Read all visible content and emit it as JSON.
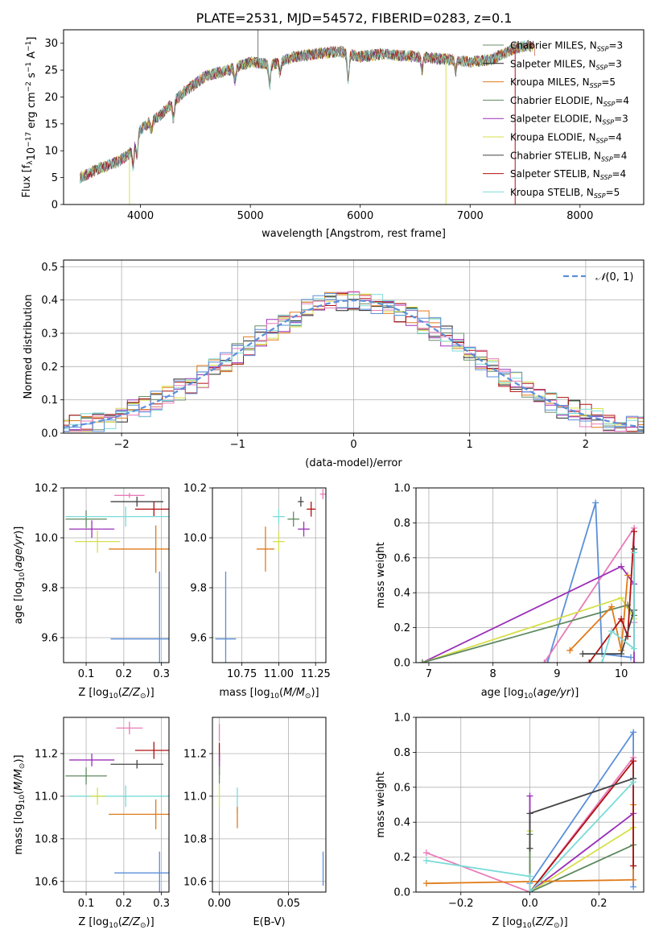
{
  "chart_data": [
    {
      "id": "spectrum",
      "type": "line",
      "title": "PLATE=2531, MJD=54572, FIBERID=0283, z=0.1",
      "xlabel": "wavelength [Angstrom, rest frame]",
      "ylabel": "Flux [f_λ 10^-17 erg cm^-2 s^-1 A^-1]",
      "xlim": [
        3300,
        8580
      ],
      "ylim": [
        0,
        32.5
      ],
      "xticks": [
        4000,
        5000,
        6000,
        7000,
        8000
      ],
      "yticks": [
        0,
        5,
        10,
        15,
        20,
        25,
        30
      ],
      "legend_position": "upper-right",
      "continuum": {
        "x": [
          3450,
          3600,
          3800,
          3900,
          4000,
          4200,
          4400,
          4600,
          4800,
          5000,
          5200,
          5400,
          5600,
          5800,
          6000,
          6200,
          6500,
          6800,
          7000,
          7200,
          7400,
          7500
        ],
        "y": [
          5,
          6.5,
          8,
          9.5,
          14,
          17,
          21,
          24,
          25,
          26.5,
          26,
          27.5,
          28,
          28.5,
          27.5,
          28,
          27.5,
          27,
          26.5,
          27,
          29,
          29.5
        ]
      },
      "series": [
        {
          "name": "Chabrier MILES, N_SSP=3",
          "color": "#6a8f6a"
        },
        {
          "name": "Salpeter MILES, N_SSP=3",
          "color": "#222222"
        },
        {
          "name": "Kroupa MILES, N_SSP=5",
          "color": "#e07b1a"
        },
        {
          "name": "Chabrier ELODIE, N_SSP=4",
          "color": "#5f8a5f"
        },
        {
          "name": "Salpeter ELODIE, N_SSP=3",
          "color": "#9b30b8"
        },
        {
          "name": "Kroupa ELODIE, N_SSP=4",
          "color": "#d6e04a"
        },
        {
          "name": "Chabrier STELIB, N_SSP=4",
          "color": "#444444"
        },
        {
          "name": "Salpeter STELIB, N_SSP=4",
          "color": "#b01010"
        },
        {
          "name": "Kroupa STELIB, N_SSP=5",
          "color": "#7adbd8"
        }
      ]
    },
    {
      "id": "residuals",
      "type": "bar",
      "xlabel": "(data-model)/error",
      "ylabel": "Normed distribution",
      "xlim": [
        -2.5,
        2.5
      ],
      "ylim": [
        0,
        0.52
      ],
      "xticks": [
        -2,
        -1,
        0,
        1,
        2
      ],
      "yticks": [
        0.0,
        0.1,
        0.2,
        0.3,
        0.4,
        0.5
      ],
      "reference_curve": {
        "name": "N(0, 1)",
        "color": "#5b8fd9",
        "style": "dashed"
      },
      "legend_position": "upper-right",
      "histogram_colors": [
        "#6a8f6a",
        "#222222",
        "#e07b1a",
        "#9b30b8",
        "#d6e04a",
        "#b01010",
        "#7adbd8",
        "#e87bb8",
        "#5b8fd9"
      ],
      "bin_width": 0.1
    },
    {
      "id": "age-vs-Z",
      "type": "scatter",
      "xlabel": "Z [log10(Z/Z_sun)]",
      "ylabel": "age [log10(age/yr)]",
      "xlim": [
        0.04,
        0.32
      ],
      "ylim": [
        9.5,
        10.2
      ],
      "xticks": [
        0.1,
        0.2,
        0.3
      ],
      "yticks": [
        9.6,
        9.8,
        10.0,
        10.2
      ],
      "points": [
        {
          "x": 0.215,
          "y": 10.17,
          "xerr": 0.04,
          "yerr": 0.01,
          "color": "#e87bb8"
        },
        {
          "x": 0.235,
          "y": 10.145,
          "xerr": 0.07,
          "yerr": 0.02,
          "color": "#444444"
        },
        {
          "x": 0.28,
          "y": 10.115,
          "xerr": 0.05,
          "yerr": 0.03,
          "color": "#b01010"
        },
        {
          "x": 0.1,
          "y": 10.075,
          "xerr": 0.055,
          "yerr": 0.035,
          "color": "#5f8a5f"
        },
        {
          "x": 0.205,
          "y": 10.085,
          "xerr": 0.16,
          "yerr": 0.04,
          "color": "#7adbd8"
        },
        {
          "x": 0.115,
          "y": 10.035,
          "xerr": 0.06,
          "yerr": 0.035,
          "color": "#9b30b8"
        },
        {
          "x": 0.13,
          "y": 9.985,
          "xerr": 0.06,
          "yerr": 0.045,
          "color": "#d6e04a"
        },
        {
          "x": 0.285,
          "y": 9.955,
          "xerr": 0.125,
          "yerr": 0.095,
          "color": "#e07b1a"
        },
        {
          "x": 0.295,
          "y": 9.595,
          "xerr": 0.13,
          "yerr": 0.27,
          "color": "#5b8fd9"
        }
      ]
    },
    {
      "id": "age-vs-mass",
      "type": "scatter",
      "xlabel": "mass [log10(M/M_sun)]",
      "ylabel": "",
      "xlim": [
        10.55,
        11.32
      ],
      "ylim": [
        9.5,
        10.2
      ],
      "xticks": [
        10.75,
        11.0,
        11.25
      ],
      "xtick_labels": [
        "10.75",
        "11.00",
        "11.25"
      ],
      "yticks": [
        9.6,
        9.8,
        10.0,
        10.2
      ],
      "points": [
        {
          "x": 11.3,
          "y": 10.175,
          "xerr": 0.02,
          "yerr": 0.02,
          "color": "#e87bb8"
        },
        {
          "x": 11.15,
          "y": 10.145,
          "xerr": 0.02,
          "yerr": 0.02,
          "color": "#444444"
        },
        {
          "x": 11.22,
          "y": 10.115,
          "xerr": 0.03,
          "yerr": 0.03,
          "color": "#b01010"
        },
        {
          "x": 11.1,
          "y": 10.075,
          "xerr": 0.04,
          "yerr": 0.03,
          "color": "#5f8a5f"
        },
        {
          "x": 11.0,
          "y": 10.085,
          "xerr": 0.04,
          "yerr": 0.03,
          "color": "#7adbd8"
        },
        {
          "x": 11.17,
          "y": 10.035,
          "xerr": 0.04,
          "yerr": 0.03,
          "color": "#9b30b8"
        },
        {
          "x": 11.0,
          "y": 9.985,
          "xerr": 0.04,
          "yerr": 0.04,
          "color": "#d6e04a"
        },
        {
          "x": 10.91,
          "y": 9.955,
          "xerr": 0.06,
          "yerr": 0.09,
          "color": "#e07b1a"
        },
        {
          "x": 10.64,
          "y": 9.595,
          "xerr": 0.07,
          "yerr": 0.27,
          "color": "#5b8fd9"
        }
      ]
    },
    {
      "id": "massweight-vs-age",
      "type": "line",
      "xlabel": "age [log10(age/yr)]",
      "ylabel": "mass weight",
      "xlim": [
        6.8,
        10.35
      ],
      "ylim": [
        0,
        1.0
      ],
      "xticks": [
        7,
        8,
        9,
        10
      ],
      "yticks": [
        0.0,
        0.2,
        0.4,
        0.6,
        0.8,
        1.0
      ],
      "series": [
        {
          "color": "#5b8fd9",
          "x": [
            8.85,
            9.6,
            9.7,
            10.15
          ],
          "y": [
            0.0,
            0.915,
            0.05,
            0.03
          ]
        },
        {
          "color": "#e87bb8",
          "x": [
            8.8,
            10.2,
            10.2
          ],
          "y": [
            0.0,
            0.77,
            0.23
          ]
        },
        {
          "color": "#9b30b8",
          "x": [
            6.9,
            10.0,
            10.2,
            10.2
          ],
          "y": [
            0.0,
            0.55,
            0.45,
            0.0
          ]
        },
        {
          "color": "#d6e04a",
          "x": [
            6.9,
            10.0,
            10.2
          ],
          "y": [
            0.0,
            0.37,
            0.25
          ]
        },
        {
          "color": "#5f8a5f",
          "x": [
            6.9,
            10.1,
            10.2,
            10.2
          ],
          "y": [
            0.0,
            0.33,
            0.27,
            0.65
          ]
        },
        {
          "color": "#e07b1a",
          "x": [
            9.2,
            9.85,
            10.0,
            10.1
          ],
          "y": [
            0.07,
            0.32,
            0.07,
            0.5
          ]
        },
        {
          "color": "#b01010",
          "x": [
            9.5,
            10.0,
            10.1,
            10.2
          ],
          "y": [
            0.0,
            0.25,
            0.15,
            0.75
          ]
        },
        {
          "color": "#444444",
          "x": [
            9.4,
            10.0,
            10.2,
            10.2
          ],
          "y": [
            0.05,
            0.05,
            0.3,
            0.65
          ]
        },
        {
          "color": "#7adbd8",
          "x": [
            9.7,
            9.85,
            10.2,
            10.2
          ],
          "y": [
            0.0,
            0.18,
            0.08,
            0.63
          ]
        }
      ]
    },
    {
      "id": "mass-vs-Z",
      "type": "scatter",
      "xlabel": "Z [log10(Z/Z_sun)]",
      "ylabel": "mass [log10(M/M_sun)]",
      "xlim": [
        0.04,
        0.32
      ],
      "ylim": [
        10.55,
        11.37
      ],
      "xticks": [
        0.1,
        0.2,
        0.3
      ],
      "yticks": [
        10.6,
        10.8,
        11.0,
        11.2
      ],
      "points": [
        {
          "x": 0.215,
          "y": 11.32,
          "xerr": 0.035,
          "yerr": 0.03,
          "color": "#e87bb8"
        },
        {
          "x": 0.235,
          "y": 11.15,
          "xerr": 0.07,
          "yerr": 0.02,
          "color": "#444444"
        },
        {
          "x": 0.28,
          "y": 11.215,
          "xerr": 0.05,
          "yerr": 0.04,
          "color": "#b01010"
        },
        {
          "x": 0.1,
          "y": 11.095,
          "xerr": 0.055,
          "yerr": 0.04,
          "color": "#5f8a5f"
        },
        {
          "x": 0.205,
          "y": 11.0,
          "xerr": 0.15,
          "yerr": 0.05,
          "color": "#7adbd8"
        },
        {
          "x": 0.115,
          "y": 11.17,
          "xerr": 0.06,
          "yerr": 0.03,
          "color": "#9b30b8"
        },
        {
          "x": 0.13,
          "y": 11.0,
          "xerr": 0.02,
          "yerr": 0.04,
          "color": "#d6e04a"
        },
        {
          "x": 0.285,
          "y": 10.915,
          "xerr": 0.125,
          "yerr": 0.07,
          "color": "#e07b1a"
        },
        {
          "x": 0.295,
          "y": 10.64,
          "xerr": 0.12,
          "yerr": 0.1,
          "color": "#5b8fd9"
        }
      ]
    },
    {
      "id": "mass-vs-ebv",
      "type": "scatter",
      "xlabel": "E(B-V)",
      "ylabel": "",
      "xlim": [
        -0.005,
        0.077
      ],
      "ylim": [
        10.55,
        11.37
      ],
      "xticks": [
        0.0,
        0.05
      ],
      "xtick_labels": [
        "0.00",
        "0.05"
      ],
      "yticks": [
        10.6,
        10.8,
        11.0,
        11.2
      ],
      "points": [
        {
          "x": 0.0,
          "y": 11.3,
          "xerr": 0,
          "yerr": 0.04,
          "color": "#e87bb8"
        },
        {
          "x": 0.0,
          "y": 11.15,
          "xerr": 0,
          "yerr": 0.05,
          "color": "#444444"
        },
        {
          "x": 0.0,
          "y": 11.21,
          "xerr": 0,
          "yerr": 0.04,
          "color": "#b01010"
        },
        {
          "x": 0.0,
          "y": 11.1,
          "xerr": 0,
          "yerr": 0.04,
          "color": "#5f8a5f"
        },
        {
          "x": 0.013,
          "y": 10.98,
          "xerr": 0,
          "yerr": 0.06,
          "color": "#7adbd8"
        },
        {
          "x": 0.0,
          "y": 11.17,
          "xerr": 0,
          "yerr": 0.03,
          "color": "#9b30b8"
        },
        {
          "x": 0.0,
          "y": 11.0,
          "xerr": 0,
          "yerr": 0.05,
          "color": "#d6e04a"
        },
        {
          "x": 0.013,
          "y": 10.9,
          "xerr": 0,
          "yerr": 0.05,
          "color": "#e07b1a"
        },
        {
          "x": 0.075,
          "y": 10.66,
          "xerr": 0,
          "yerr": 0.08,
          "color": "#5b8fd9"
        }
      ]
    },
    {
      "id": "massweight-vs-Z",
      "type": "line",
      "xlabel": "Z [log10(Z/Z_sun)]",
      "ylabel": "mass weight",
      "xlim": [
        -0.33,
        0.33
      ],
      "ylim": [
        0,
        1.0
      ],
      "xticks": [
        -0.2,
        0.0,
        0.2
      ],
      "xtick_labels": [
        "−0.2",
        "0.0",
        "0.2"
      ],
      "yticks": [
        0.0,
        0.2,
        0.4,
        0.6,
        0.8,
        1.0
      ],
      "series": [
        {
          "color": "#5b8fd9",
          "x": [
            0.0,
            0.3,
            0.3
          ],
          "y": [
            0.05,
            0.915,
            0.03
          ]
        },
        {
          "color": "#e87bb8",
          "x": [
            -0.3,
            0.0,
            0.3
          ],
          "y": [
            0.225,
            0.0,
            0.77
          ]
        },
        {
          "color": "#9b30b8",
          "x": [
            0.0,
            0.0,
            0.3
          ],
          "y": [
            0.55,
            0.0,
            0.45
          ]
        },
        {
          "color": "#d6e04a",
          "x": [
            0.0,
            0.0,
            0.3
          ],
          "y": [
            0.35,
            0.0,
            0.37
          ]
        },
        {
          "color": "#5f8a5f",
          "x": [
            0.0,
            0.0,
            0.3
          ],
          "y": [
            0.33,
            0.0,
            0.27
          ]
        },
        {
          "color": "#e07b1a",
          "x": [
            -0.3,
            0.3,
            0.3
          ],
          "y": [
            0.05,
            0.07,
            0.5
          ]
        },
        {
          "color": "#b01010",
          "x": [
            0.0,
            0.3,
            0.3
          ],
          "y": [
            0.0,
            0.75,
            0.15
          ]
        },
        {
          "color": "#444444",
          "x": [
            0.0,
            0.0,
            0.3
          ],
          "y": [
            0.25,
            0.45,
            0.65
          ]
        },
        {
          "color": "#7adbd8",
          "x": [
            -0.3,
            0.0,
            0.0,
            0.3
          ],
          "y": [
            0.18,
            0.09,
            0.0,
            0.63
          ]
        }
      ]
    }
  ]
}
